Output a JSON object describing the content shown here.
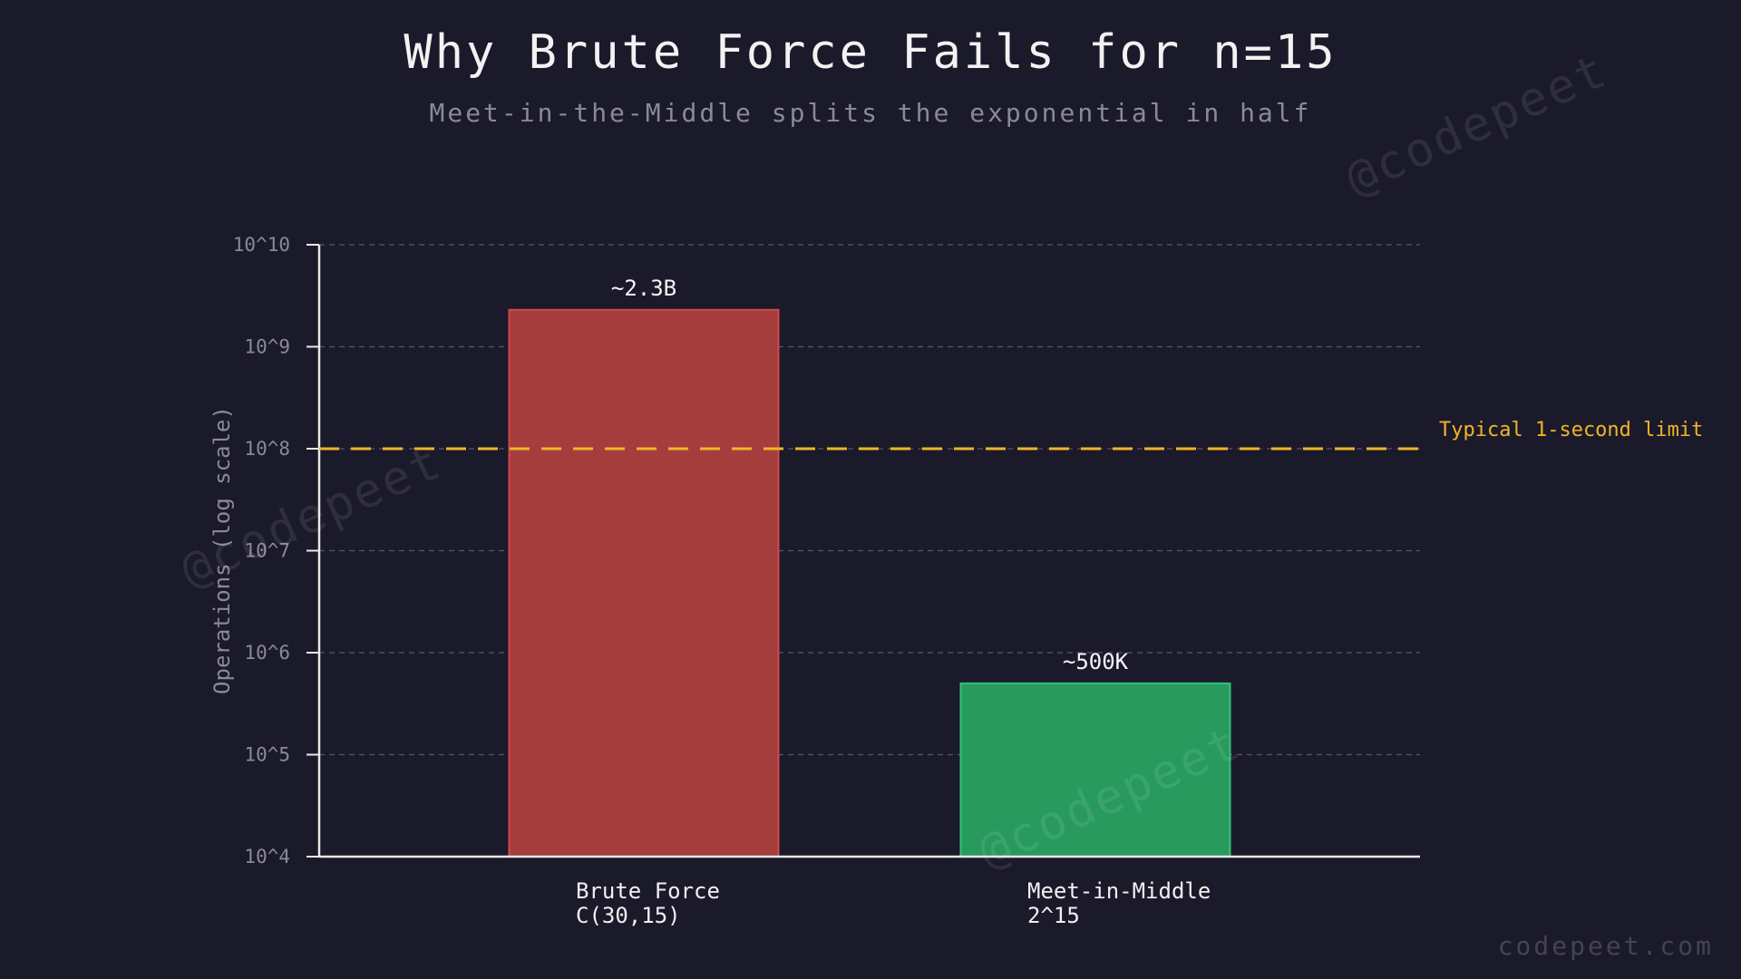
{
  "chart_data": {
    "type": "bar",
    "title": "Why Brute Force Fails for n=15",
    "subtitle": "Meet-in-the-Middle splits the exponential in half",
    "ylabel": "Operations (log scale)",
    "xlabel": "",
    "y_scale": "log",
    "ylim": [
      10000,
      10000000000
    ],
    "y_ticks": [
      {
        "value": 10000,
        "label": "10^4"
      },
      {
        "value": 100000,
        "label": "10^5"
      },
      {
        "value": 1000000,
        "label": "10^6"
      },
      {
        "value": 10000000,
        "label": "10^7"
      },
      {
        "value": 100000000,
        "label": "10^8"
      },
      {
        "value": 1000000000,
        "label": "10^9"
      },
      {
        "value": 10000000000,
        "label": "10^10"
      }
    ],
    "grid": true,
    "categories": [
      {
        "line1": "Brute Force",
        "line2": "C(30,15)"
      },
      {
        "line1": "Meet-in-Middle",
        "line2": "2^15"
      }
    ],
    "values": [
      2300000000,
      500000
    ],
    "data_labels": [
      "~2.3B",
      "~500K"
    ],
    "bar_colors": [
      "#a63d3d",
      "#289a5e"
    ],
    "bar_edge_colors": [
      "#d04a4a",
      "#34c27a"
    ],
    "reference_line": {
      "value": 100000000,
      "label": "Typical 1-second limit",
      "color": "#f0b429"
    }
  },
  "watermark": {
    "text": "@codepeet",
    "footer": "codepeet.com"
  },
  "colors": {
    "background": "#1b1a2b",
    "axis": "#e8e8e8",
    "tick_label": "#8a8a95",
    "grid": "#55566a"
  }
}
